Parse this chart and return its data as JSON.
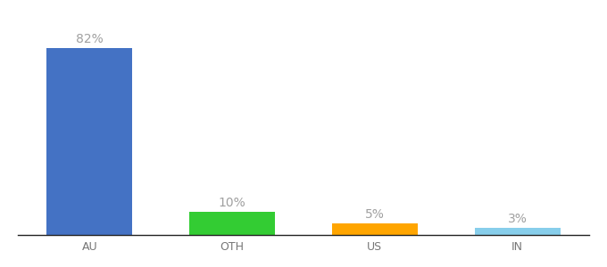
{
  "categories": [
    "AU",
    "OTH",
    "US",
    "IN"
  ],
  "values": [
    82,
    10,
    5,
    3
  ],
  "bar_colors": [
    "#4472C4",
    "#33CC33",
    "#FFA500",
    "#87CEEB"
  ],
  "label_color": "#A0A0A0",
  "labels": [
    "82%",
    "10%",
    "5%",
    "3%"
  ],
  "background_color": "#ffffff",
  "ylim": [
    0,
    95
  ],
  "label_fontsize": 10,
  "tick_fontsize": 9,
  "bar_width": 0.6,
  "bar_positions": [
    0,
    1,
    2,
    3
  ],
  "xlim": [
    -0.5,
    3.5
  ]
}
